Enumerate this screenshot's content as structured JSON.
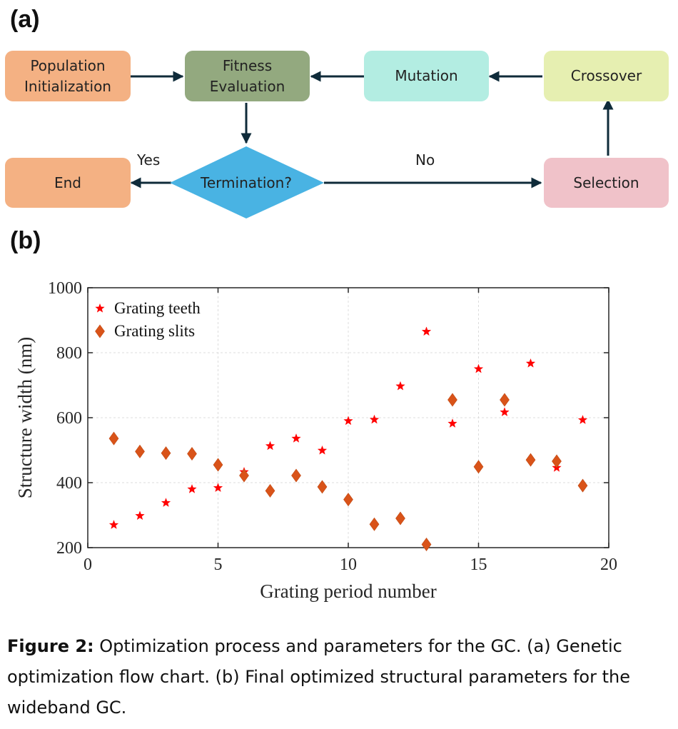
{
  "panel_a_label": "(a)",
  "panel_b_label": "(b)",
  "flowchart": {
    "population": "Population\nInitialization",
    "fitness": "Fitness\nEvaluation",
    "mutation": "Mutation",
    "crossover": "Crossover",
    "end": "End",
    "termination": "Termination?",
    "selection": "Selection",
    "yes_label": "Yes",
    "no_label": "No",
    "colors": {
      "population": "#f4b183",
      "fitness": "#93a97f",
      "mutation": "#b3ede2",
      "crossover": "#e6efb1",
      "end": "#f4b183",
      "termination": "#49b3e3",
      "selection": "#f0c2c9",
      "arrow": "#0f2b3a"
    }
  },
  "chart_data": {
    "type": "scatter",
    "xlabel": "Grating period number",
    "ylabel": "Structure width (nm)",
    "xlim": [
      0,
      20
    ],
    "ylim": [
      200,
      1000
    ],
    "xticks": [
      0,
      5,
      10,
      15,
      20
    ],
    "yticks": [
      200,
      400,
      600,
      800,
      1000
    ],
    "grid": true,
    "legend_position": "top-left",
    "series": [
      {
        "name": "Grating teeth",
        "marker": "star",
        "color": "#ff0000",
        "x": [
          1,
          2,
          3,
          4,
          5,
          6,
          7,
          8,
          9,
          10,
          11,
          12,
          13,
          14,
          15,
          16,
          17,
          18,
          19
        ],
        "y": [
          270,
          298,
          338,
          380,
          384,
          433,
          513,
          536,
          499,
          590,
          594,
          697,
          865,
          582,
          750,
          617,
          767,
          446,
          593
        ]
      },
      {
        "name": "Grating slits",
        "marker": "diamond",
        "color": "#d95319",
        "x": [
          1,
          2,
          3,
          4,
          5,
          6,
          7,
          8,
          9,
          10,
          11,
          12,
          13,
          14,
          15,
          16,
          17,
          18,
          19
        ],
        "y": [
          536,
          496,
          491,
          489,
          455,
          422,
          375,
          422,
          387,
          348,
          272,
          290,
          210,
          655,
          449,
          655,
          470,
          466,
          391
        ]
      }
    ]
  },
  "caption": {
    "label": "Figure 2:",
    "text": " Optimization process and parameters for the GC. (a) Genetic optimization flow chart. (b) Final optimized structural parameters for the wideband GC."
  }
}
